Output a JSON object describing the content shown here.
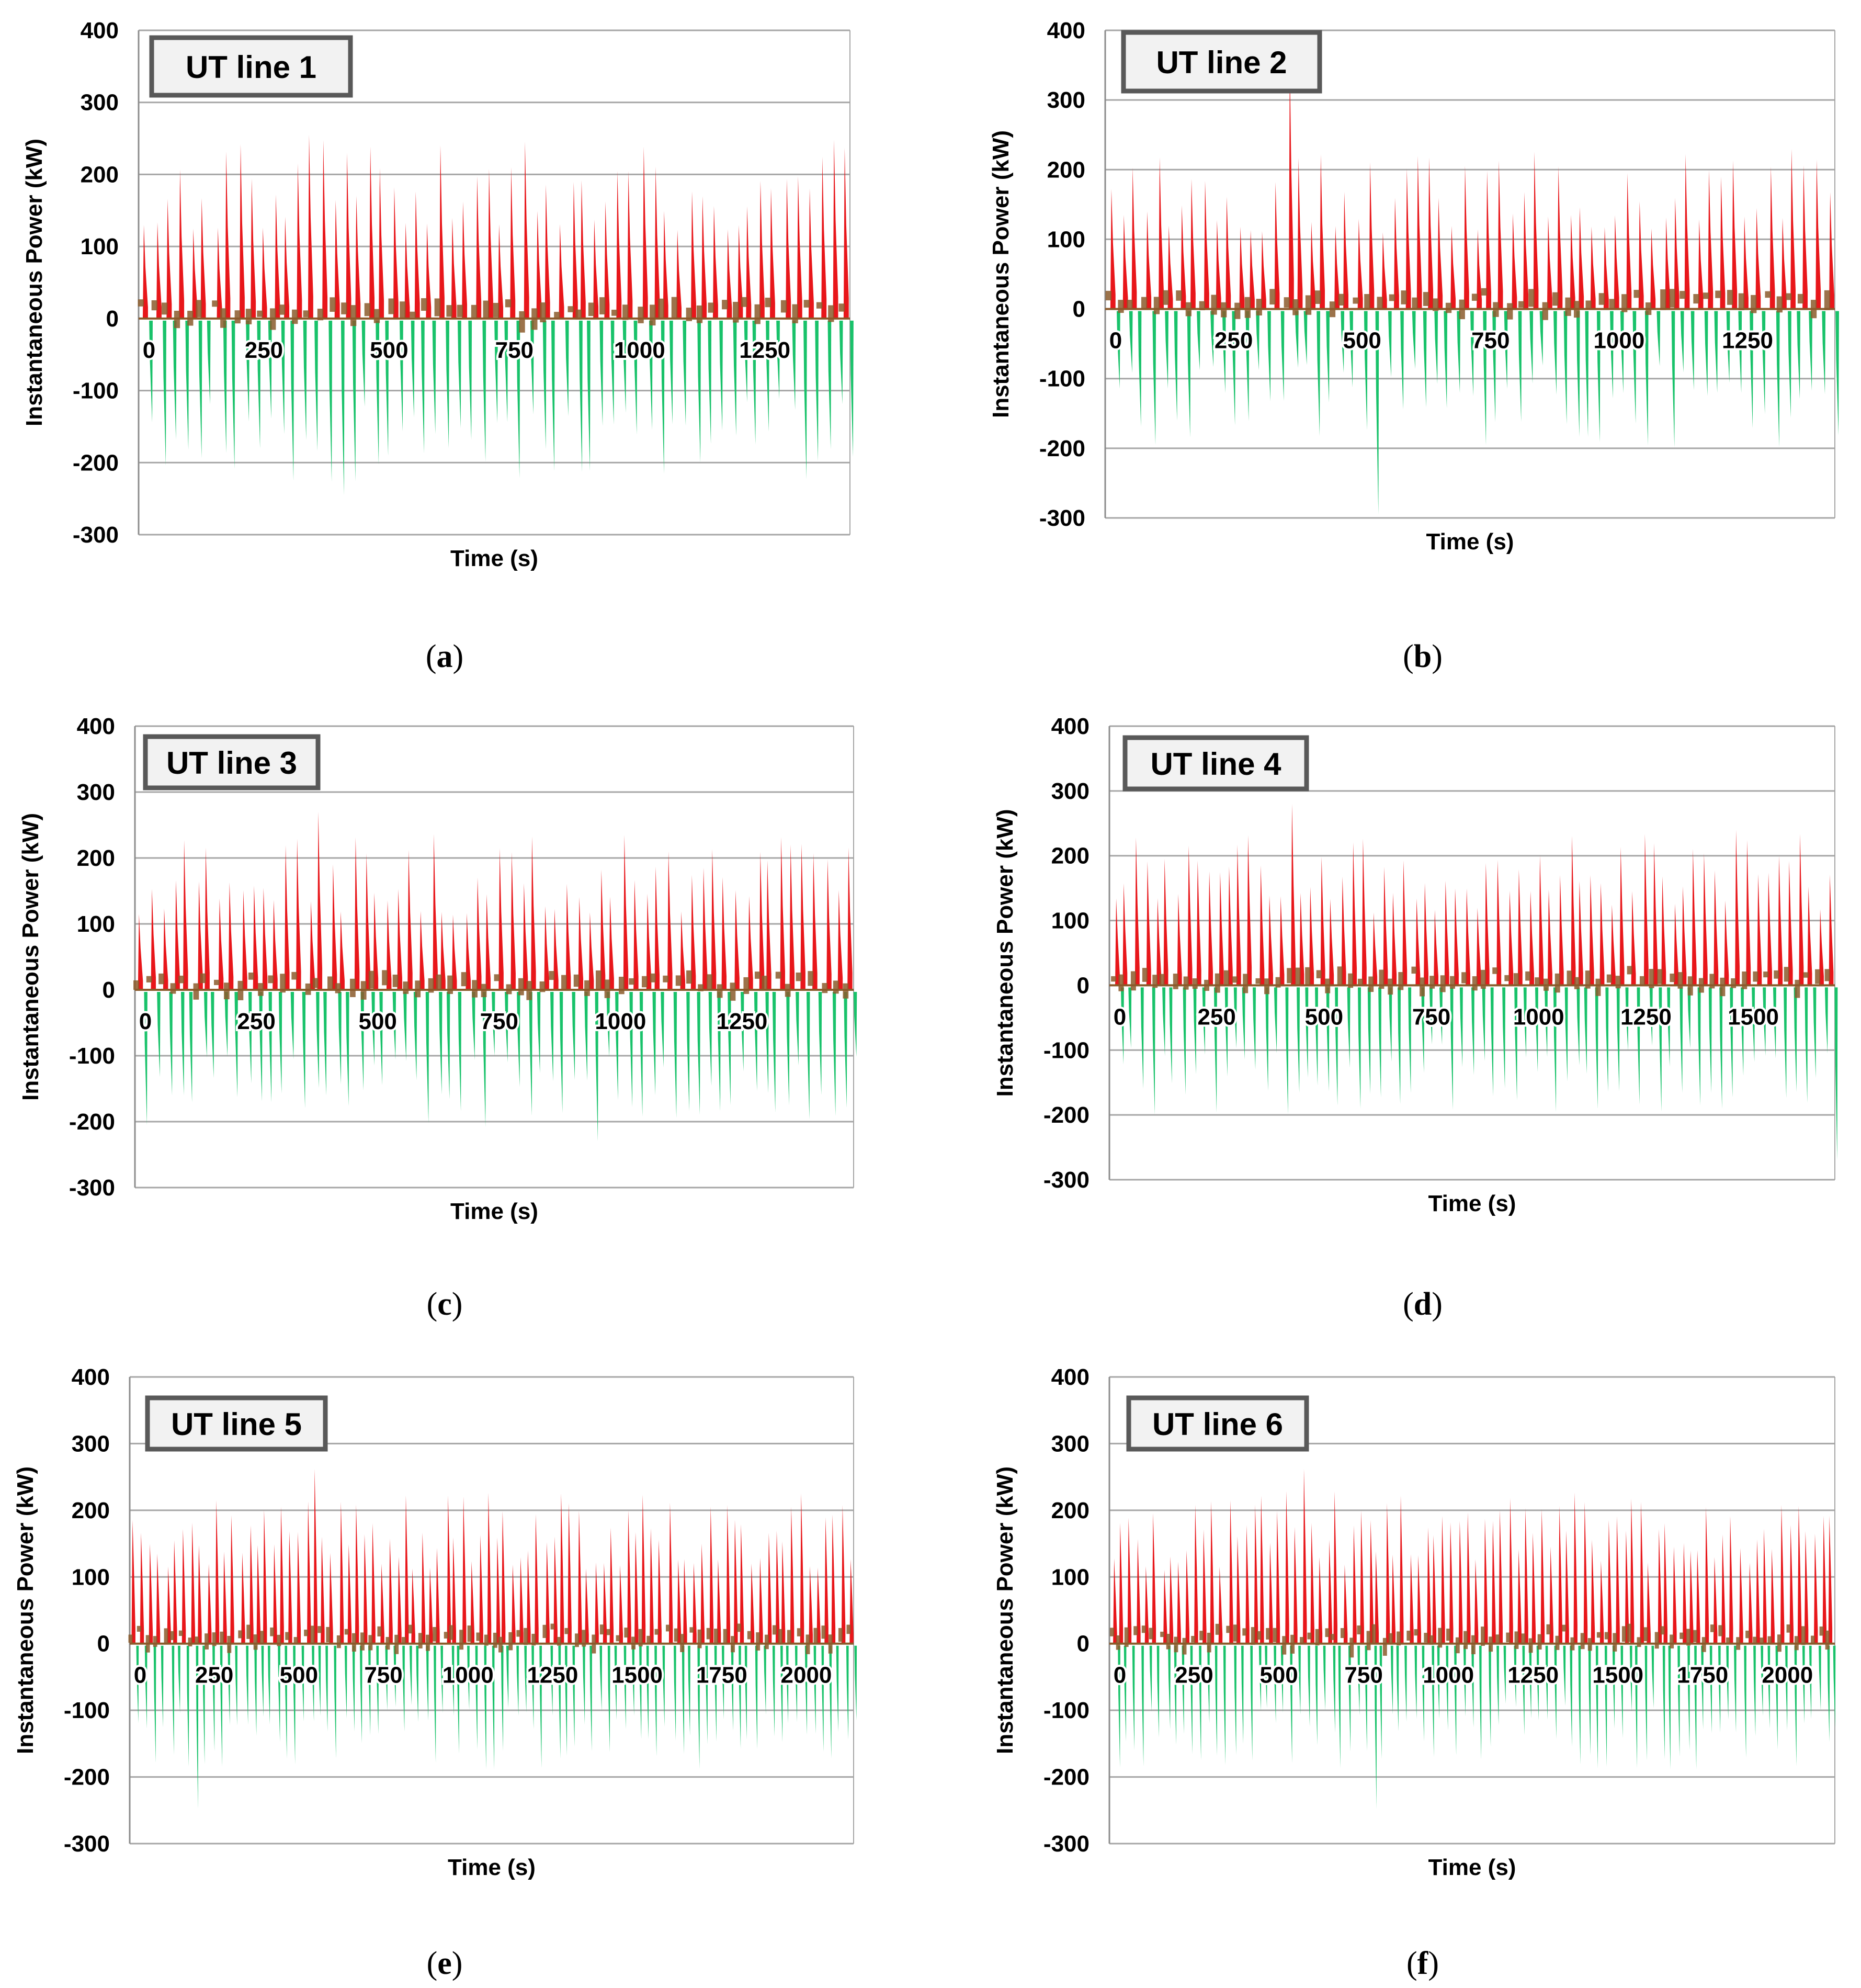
{
  "figure": {
    "colors": {
      "positive": "#e8161a",
      "negative": "#18c26a",
      "near_zero": "#8b5a2b",
      "grid": "#a6a6a6",
      "axis": "#8c8c8c",
      "label_box_border": "#595959",
      "label_box_fill": "#f2f2f2"
    }
  },
  "chart_data": [
    {
      "type": "area",
      "panel_label": "a",
      "title": "UT line 1",
      "xlabel": "Time  (s)",
      "ylabel": "Instantaneous  Power (kW)",
      "ylim": [
        -300,
        400
      ],
      "xlim": [
        0,
        1420
      ],
      "yticks": [
        "400",
        "300",
        "200",
        "100",
        "0",
        "-100",
        "-200",
        "-300"
      ],
      "yticks_values": [
        400,
        300,
        200,
        100,
        0,
        -100,
        -200,
        -300
      ],
      "xticks": [
        "0",
        "250",
        "500",
        "750",
        "1000",
        "1250"
      ],
      "xticks_values": [
        0,
        250,
        500,
        750,
        1000,
        1250
      ],
      "grid": true,
      "series": [
        {
          "name": "Instantaneous Power",
          "seed": 11,
          "pos_peak_range": [
            120,
            250
          ],
          "neg_peak_range": [
            -230,
            -110
          ],
          "spike_count": 60,
          "max_peak": 255,
          "min_peak": -245
        }
      ]
    },
    {
      "type": "area",
      "panel_label": "b",
      "title": "UT line 2",
      "xlabel": "Time  (s)",
      "ylabel": "Instantaneous  Power (kW)",
      "ylim": [
        -300,
        400
      ],
      "xlim": [
        0,
        1420
      ],
      "yticks": [
        "400",
        "300",
        "200",
        "100",
        "0",
        "-100",
        "-200",
        "-300"
      ],
      "yticks_values": [
        400,
        300,
        200,
        100,
        0,
        -100,
        -200,
        -300
      ],
      "xticks": [
        "0",
        "250",
        "500",
        "750",
        "1000",
        "1250"
      ],
      "xticks_values": [
        0,
        250,
        500,
        750,
        1000,
        1250
      ],
      "grid": true,
      "series": [
        {
          "name": "Instantaneous Power",
          "seed": 23,
          "pos_peak_range": [
            110,
            230
          ],
          "neg_peak_range": [
            -200,
            -80
          ],
          "spike_count": 62,
          "max_peak": 355,
          "min_peak": -295
        }
      ]
    },
    {
      "type": "area",
      "panel_label": "c",
      "title": "UT line 3",
      "xlabel": "Time  (s)",
      "ylabel": "Instantaneous  Power (kW)",
      "ylim": [
        -300,
        400
      ],
      "xlim": [
        0,
        1480
      ],
      "yticks": [
        "400",
        "300",
        "200",
        "100",
        "0",
        "-100",
        "-200",
        "-300"
      ],
      "yticks_values": [
        400,
        300,
        200,
        100,
        0,
        -100,
        -200,
        -300
      ],
      "xticks": [
        "0",
        "250",
        "500",
        "750",
        "1000",
        "1250"
      ],
      "xticks_values": [
        0,
        250,
        500,
        750,
        1000,
        1250
      ],
      "grid": true,
      "series": [
        {
          "name": "Instantaneous Power",
          "seed": 37,
          "pos_peak_range": [
            110,
            240
          ],
          "neg_peak_range": [
            -210,
            -100
          ],
          "spike_count": 64,
          "max_peak": 270,
          "min_peak": -230
        }
      ]
    },
    {
      "type": "area",
      "panel_label": "d",
      "title": "UT line 4",
      "xlabel": "Time  (s)",
      "ylabel": "Instantaneous  Power (kW)",
      "ylim": [
        -300,
        400
      ],
      "xlim": [
        0,
        1690
      ],
      "yticks": [
        "400",
        "300",
        "200",
        "100",
        "0",
        "-100",
        "-200",
        "-300"
      ],
      "yticks_values": [
        400,
        300,
        200,
        100,
        0,
        -100,
        -200,
        -300
      ],
      "xticks": [
        "0",
        "250",
        "500",
        "750",
        "1000",
        "1250",
        "1500"
      ],
      "xticks_values": [
        0,
        250,
        500,
        750,
        1000,
        1250,
        1500
      ],
      "grid": true,
      "series": [
        {
          "name": "Instantaneous Power",
          "seed": 41,
          "pos_peak_range": [
            110,
            240
          ],
          "neg_peak_range": [
            -200,
            -90
          ],
          "spike_count": 70,
          "max_peak": 280,
          "min_peak": -270
        }
      ]
    },
    {
      "type": "area",
      "panel_label": "e",
      "title": "UT line 5",
      "xlabel": "Time  (s)",
      "ylabel": "Instantaneous  Power (kW)",
      "ylim": [
        -300,
        400
      ],
      "xlim": [
        0,
        2140
      ],
      "yticks": [
        "400",
        "300",
        "200",
        "100",
        "0",
        "-100",
        "-200",
        "-300"
      ],
      "yticks_values": [
        400,
        300,
        200,
        100,
        0,
        -100,
        -200,
        -300
      ],
      "xticks": [
        "0",
        "250",
        "500",
        "750",
        "1000",
        "1250",
        "1500",
        "1750",
        "2000"
      ],
      "xticks_values": [
        0,
        250,
        500,
        750,
        1000,
        1250,
        1500,
        1750,
        2000
      ],
      "grid": true,
      "series": [
        {
          "name": "Instantaneous Power",
          "seed": 53,
          "pos_peak_range": [
            110,
            230
          ],
          "neg_peak_range": [
            -190,
            -90
          ],
          "spike_count": 88,
          "max_peak": 262,
          "min_peak": -248
        }
      ]
    },
    {
      "type": "area",
      "panel_label": "f",
      "title": "UT line 6",
      "xlabel": "Time  (s)",
      "ylabel": "Instantaneous  Power (kW)",
      "ylim": [
        -300,
        400
      ],
      "xlim": [
        0,
        2140
      ],
      "yticks": [
        "400",
        "300",
        "200",
        "100",
        "0",
        "-100",
        "-200",
        "-300"
      ],
      "yticks_values": [
        400,
        300,
        200,
        100,
        0,
        -100,
        -200,
        -300
      ],
      "xticks": [
        "0",
        "250",
        "500",
        "750",
        "1000",
        "1250",
        "1500",
        "1750",
        "2000"
      ],
      "xticks_values": [
        0,
        250,
        500,
        750,
        1000,
        1250,
        1500,
        1750,
        2000
      ],
      "grid": true,
      "series": [
        {
          "name": "Instantaneous Power",
          "seed": 67,
          "pos_peak_range": [
            110,
            230
          ],
          "neg_peak_range": [
            -190,
            -90
          ],
          "spike_count": 88,
          "max_peak": 262,
          "min_peak": -248
        }
      ]
    }
  ]
}
